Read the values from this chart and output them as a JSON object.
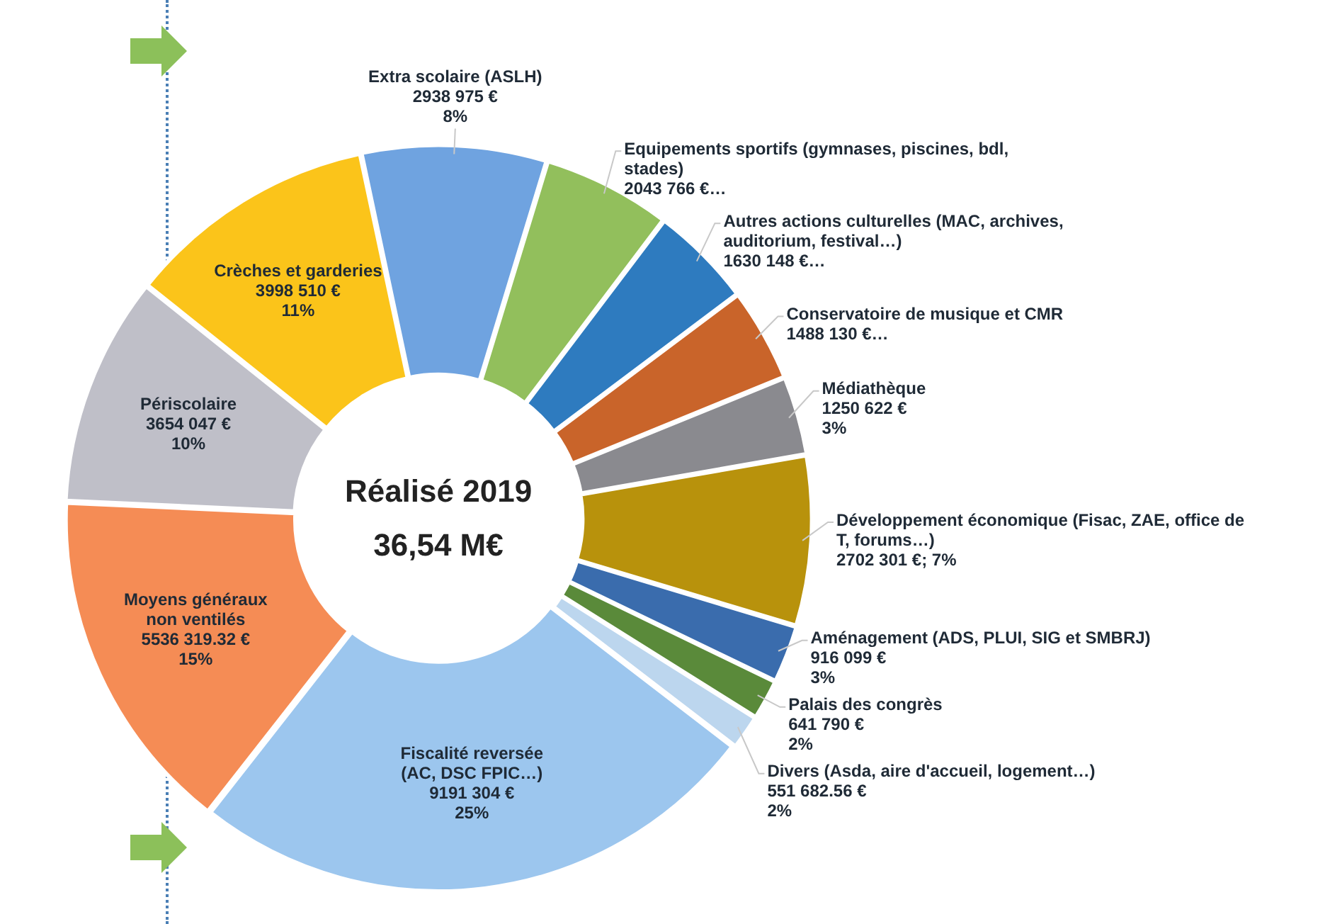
{
  "chart_data": {
    "type": "donut",
    "title": "Réalisé 2019",
    "subtitle": "36,54 M€",
    "categories": [
      "Extra scolaire (ASLH)",
      "Equipements sportifs (gymnases, piscines, bdl, stades)",
      "Autres actions culturelles (MAC, archives, auditorium, festival…)",
      "Conservatoire de musique et CMR",
      "Médiathèque",
      "Développement économique (Fisac, ZAE, office de T, forums…)",
      "Aménagement (ADS, PLUI, SIG et SMBRJ)",
      "Palais des congrès",
      "Divers (Asda, aire d'accueil, logement…)",
      "Fiscalité reversée (AC, DSC FPIC…)",
      "Moyens généraux non ventilés",
      "Périscolaire",
      "Crèches et garderies"
    ],
    "values": [
      2938975,
      2043766,
      1630148,
      1488130,
      1250622,
      2702301,
      916099,
      641790,
      551682.56,
      9191304,
      5536319.32,
      3654047,
      3998510
    ],
    "colors": [
      "#6fa3e0",
      "#92bf5c",
      "#2e7bbf",
      "#c9642a",
      "#8a8a8f",
      "#b8920c",
      "#3a6cad",
      "#5a8a3a",
      "#bcd6ee",
      "#9cc6ee",
      "#f58c55",
      "#bfbfc8",
      "#fbc41a"
    ],
    "value_labels": [
      "2938 975 €\n8%",
      "2043 766 €…",
      "1630 148 €…",
      "1488 130 €…",
      "1250 622 €\n3%",
      "2702 301 €; 7%",
      "916 099 €\n3%",
      "641 790 €\n2%",
      "551 682.56 €\n2%",
      "9191 304 €\n25%",
      "5536 319.32 €\n15%",
      "3654 047 €\n10%",
      "3998 510 €\n11%"
    ]
  }
}
